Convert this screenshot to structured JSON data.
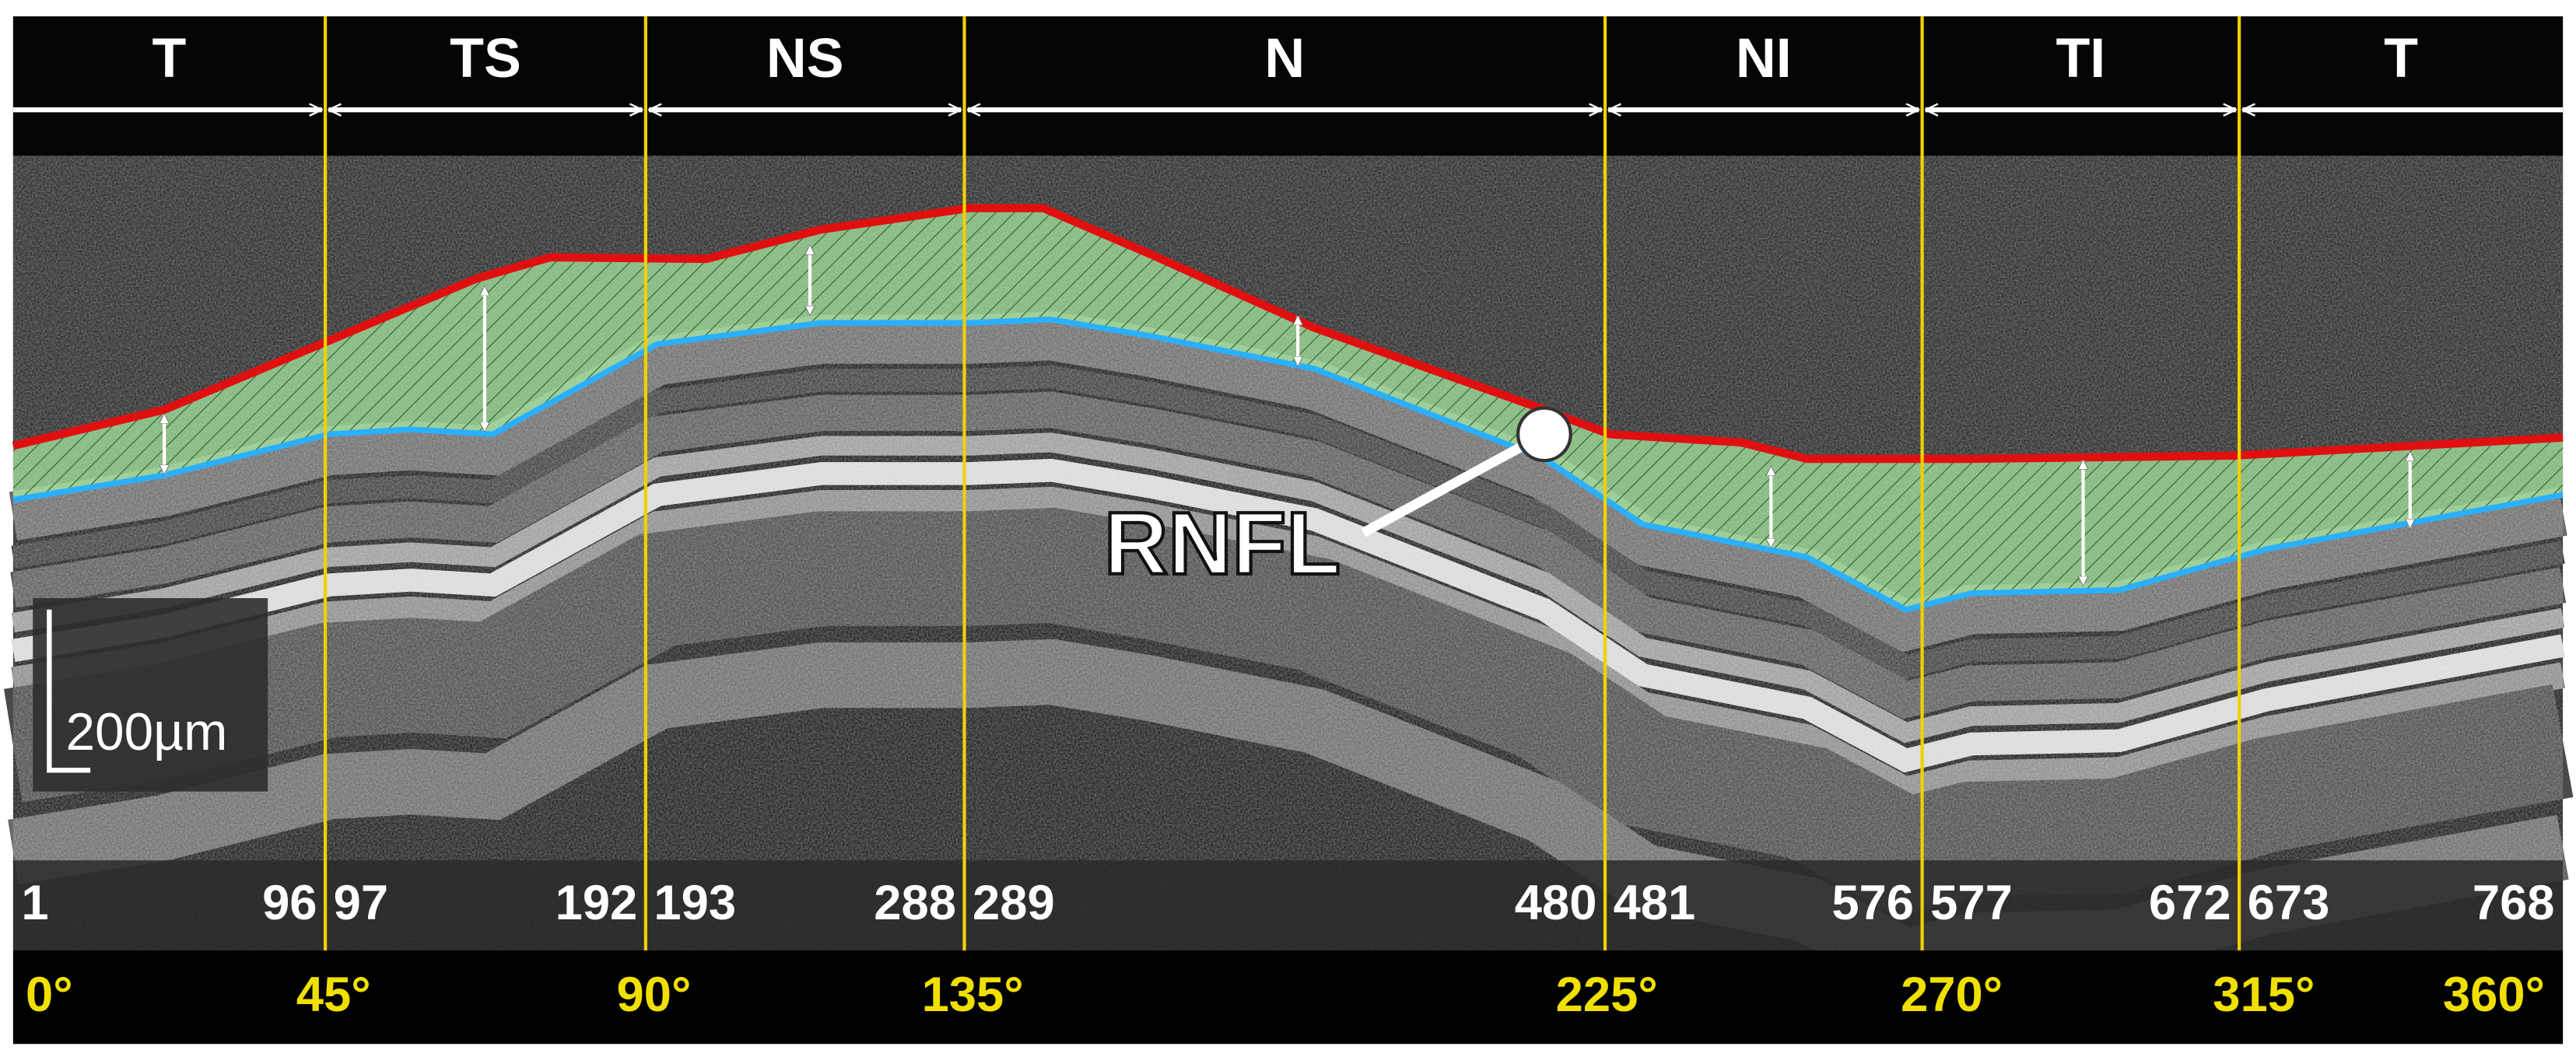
{
  "sectors": [
    {
      "label": "T",
      "start": 1,
      "end": 96
    },
    {
      "label": "TS",
      "start": 97,
      "end": 192
    },
    {
      "label": "NS",
      "start": 193,
      "end": 288
    },
    {
      "label": "N",
      "start": 289,
      "end": 480
    },
    {
      "label": "NI",
      "start": 481,
      "end": 576
    },
    {
      "label": "TI",
      "start": 577,
      "end": 672
    },
    {
      "label": "T",
      "start": 673,
      "end": 768
    }
  ],
  "degree_labels": [
    "0°",
    "45°",
    "90°",
    "135°",
    "225°",
    "270°",
    "315°",
    "360°"
  ],
  "annotation": "RNFL",
  "scale_bar": "200µm"
}
